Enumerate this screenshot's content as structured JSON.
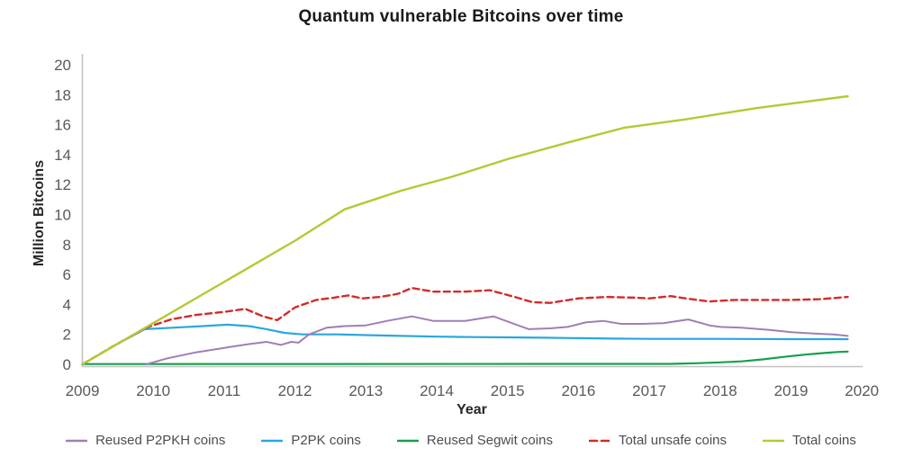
{
  "chart_data": {
    "type": "line",
    "title": "Quantum vulnerable Bitcoins over time",
    "xlabel": "Year",
    "ylabel": "Million Bitcoins",
    "xlim": [
      2009,
      2020
    ],
    "ylim": [
      0,
      20
    ],
    "xticks": [
      2009,
      2010,
      2011,
      2012,
      2013,
      2014,
      2015,
      2016,
      2017,
      2018,
      2019,
      2020
    ],
    "yticks": [
      0,
      2,
      4,
      6,
      8,
      10,
      12,
      14,
      16,
      18,
      20
    ],
    "grid": false,
    "legend_position": "bottom",
    "axis_color": "#c2c2c2",
    "tick_label_color": "#595959",
    "series": [
      {
        "name": "Reused P2PKH coins",
        "color": "#a17eb5",
        "dash": "solid",
        "width": 2,
        "points": [
          [
            2009.9,
            0
          ],
          [
            2010.2,
            0.4
          ],
          [
            2010.6,
            0.8
          ],
          [
            2011.0,
            1.1
          ],
          [
            2011.35,
            1.35
          ],
          [
            2011.6,
            1.5
          ],
          [
            2011.8,
            1.3
          ],
          [
            2011.95,
            1.5
          ],
          [
            2012.05,
            1.45
          ],
          [
            2012.2,
            2.0
          ],
          [
            2012.45,
            2.45
          ],
          [
            2012.7,
            2.55
          ],
          [
            2013.0,
            2.6
          ],
          [
            2013.3,
            2.9
          ],
          [
            2013.65,
            3.2
          ],
          [
            2013.95,
            2.9
          ],
          [
            2014.4,
            2.9
          ],
          [
            2014.8,
            3.2
          ],
          [
            2015.3,
            2.35
          ],
          [
            2015.6,
            2.4
          ],
          [
            2015.85,
            2.5
          ],
          [
            2016.1,
            2.8
          ],
          [
            2016.35,
            2.9
          ],
          [
            2016.6,
            2.7
          ],
          [
            2016.9,
            2.7
          ],
          [
            2017.2,
            2.75
          ],
          [
            2017.55,
            3.0
          ],
          [
            2017.85,
            2.6
          ],
          [
            2018.0,
            2.5
          ],
          [
            2018.3,
            2.45
          ],
          [
            2018.7,
            2.3
          ],
          [
            2019.0,
            2.15
          ],
          [
            2019.35,
            2.05
          ],
          [
            2019.6,
            2.0
          ],
          [
            2019.8,
            1.9
          ]
        ]
      },
      {
        "name": "P2PK coins",
        "color": "#2aa7e0",
        "dash": "solid",
        "width": 2.2,
        "points": [
          [
            2009,
            0
          ],
          [
            2009.45,
            1.25
          ],
          [
            2009.88,
            2.35
          ],
          [
            2010.3,
            2.45
          ],
          [
            2010.7,
            2.55
          ],
          [
            2011.05,
            2.65
          ],
          [
            2011.35,
            2.55
          ],
          [
            2011.6,
            2.35
          ],
          [
            2011.85,
            2.1
          ],
          [
            2012.1,
            2.0
          ],
          [
            2012.6,
            2.0
          ],
          [
            2013.0,
            1.95
          ],
          [
            2013.5,
            1.9
          ],
          [
            2014.0,
            1.85
          ],
          [
            2014.5,
            1.82
          ],
          [
            2015.0,
            1.8
          ],
          [
            2015.5,
            1.78
          ],
          [
            2016.0,
            1.75
          ],
          [
            2016.5,
            1.72
          ],
          [
            2017.0,
            1.7
          ],
          [
            2018.0,
            1.7
          ],
          [
            2019.0,
            1.68
          ],
          [
            2019.8,
            1.68
          ]
        ]
      },
      {
        "name": "Reused Segwit coins",
        "color": "#16a04f",
        "dash": "solid",
        "width": 2.2,
        "points": [
          [
            2009,
            0.02
          ],
          [
            2017.3,
            0.03
          ],
          [
            2017.7,
            0.08
          ],
          [
            2018.0,
            0.13
          ],
          [
            2018.3,
            0.2
          ],
          [
            2018.6,
            0.33
          ],
          [
            2018.9,
            0.5
          ],
          [
            2019.2,
            0.65
          ],
          [
            2019.45,
            0.75
          ],
          [
            2019.65,
            0.82
          ],
          [
            2019.8,
            0.85
          ]
        ]
      },
      {
        "name": "Total unsafe coins",
        "color": "#d52a28",
        "dash": "dashed",
        "width": 2.4,
        "points": [
          [
            2009,
            0
          ],
          [
            2009.45,
            1.25
          ],
          [
            2009.9,
            2.45
          ],
          [
            2010.25,
            3.0
          ],
          [
            2010.6,
            3.3
          ],
          [
            2011.0,
            3.5
          ],
          [
            2011.3,
            3.7
          ],
          [
            2011.55,
            3.2
          ],
          [
            2011.75,
            2.95
          ],
          [
            2012.0,
            3.8
          ],
          [
            2012.3,
            4.3
          ],
          [
            2012.55,
            4.45
          ],
          [
            2012.75,
            4.6
          ],
          [
            2012.95,
            4.4
          ],
          [
            2013.2,
            4.5
          ],
          [
            2013.45,
            4.7
          ],
          [
            2013.65,
            5.1
          ],
          [
            2013.95,
            4.85
          ],
          [
            2014.4,
            4.85
          ],
          [
            2014.75,
            4.95
          ],
          [
            2015.1,
            4.5
          ],
          [
            2015.35,
            4.15
          ],
          [
            2015.6,
            4.1
          ],
          [
            2016.0,
            4.4
          ],
          [
            2016.4,
            4.5
          ],
          [
            2016.8,
            4.45
          ],
          [
            2017.0,
            4.4
          ],
          [
            2017.3,
            4.55
          ],
          [
            2017.6,
            4.35
          ],
          [
            2017.85,
            4.2
          ],
          [
            2018.2,
            4.3
          ],
          [
            2018.6,
            4.3
          ],
          [
            2019.0,
            4.3
          ],
          [
            2019.4,
            4.35
          ],
          [
            2019.8,
            4.5
          ]
        ]
      },
      {
        "name": "Total coins",
        "color": "#b7c832",
        "dash": "solid",
        "width": 2.4,
        "points": [
          [
            2009,
            0
          ],
          [
            2010,
            2.75
          ],
          [
            2011,
            5.5
          ],
          [
            2012,
            8.25
          ],
          [
            2012.7,
            10.35
          ],
          [
            2013.5,
            11.6
          ],
          [
            2014.2,
            12.5
          ],
          [
            2015,
            13.7
          ],
          [
            2016,
            15.0
          ],
          [
            2016.65,
            15.8
          ],
          [
            2017.5,
            16.35
          ],
          [
            2018.5,
            17.1
          ],
          [
            2019.8,
            17.9
          ]
        ]
      }
    ]
  }
}
